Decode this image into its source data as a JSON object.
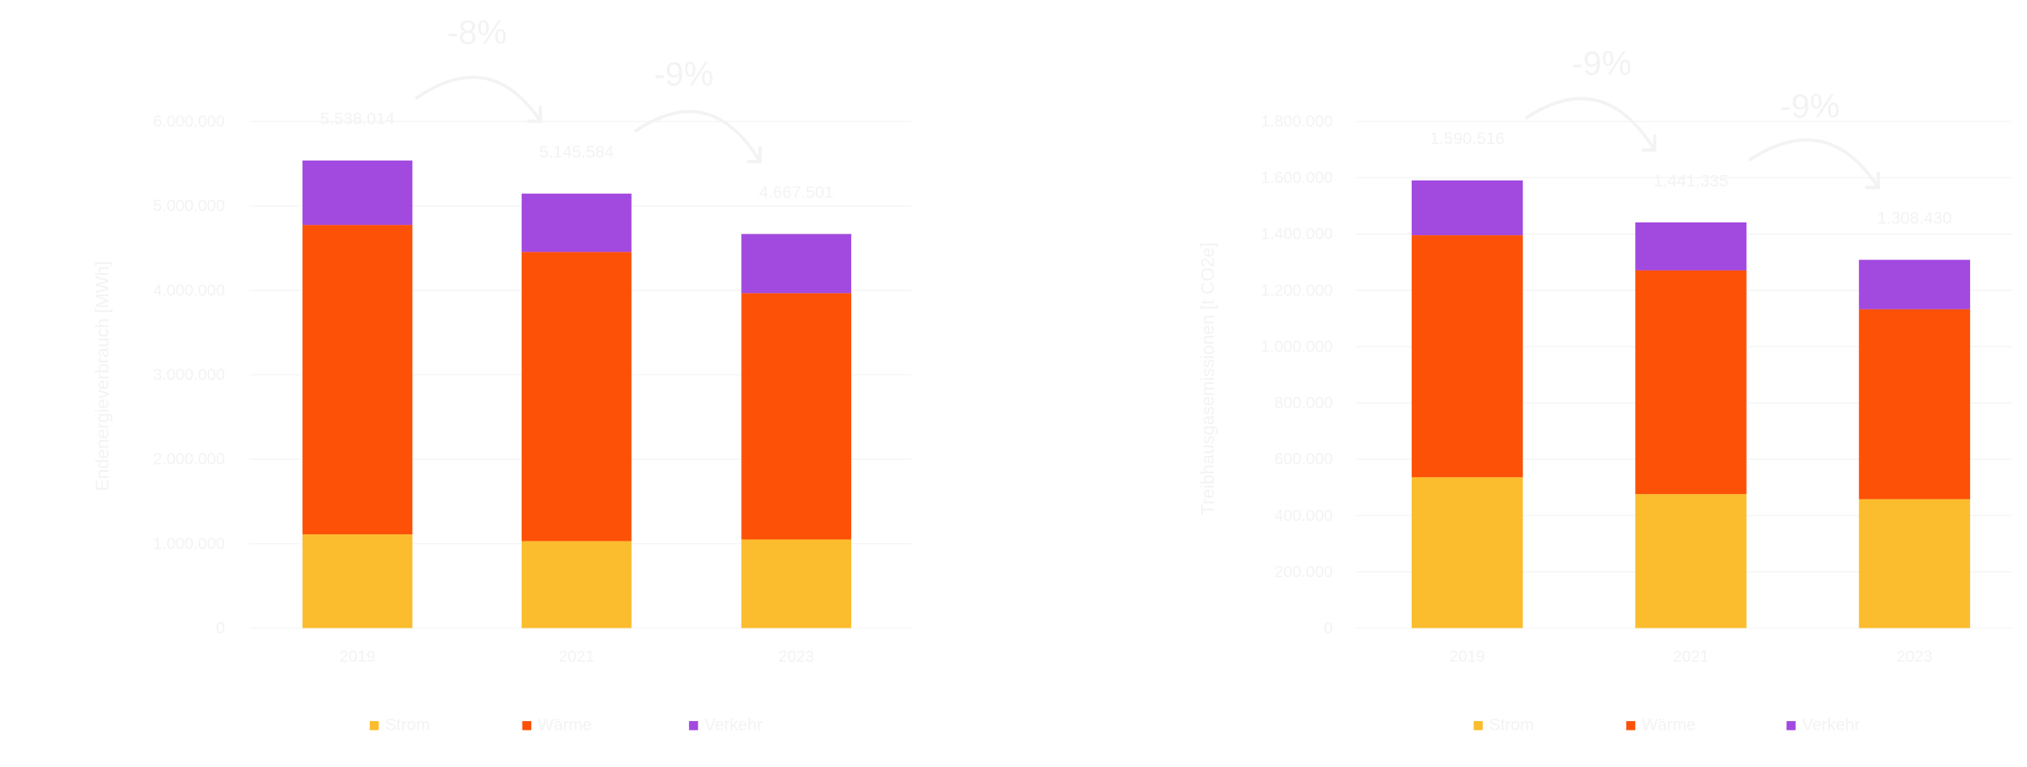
{
  "colors": {
    "Strom": "#fbbd2e",
    "Wärme": "#fd5108",
    "Verkehr": "#a249e0",
    "text": "#f3f3f3"
  },
  "chart_data": [
    {
      "type": "bar",
      "stacked": true,
      "title": "",
      "xlabel": "",
      "ylabel": "Endenergieverbrauch [MWh]",
      "ylim": [
        0,
        6000000
      ],
      "yticks": [
        "0",
        "1.000.000",
        "2.000.000",
        "3.000.000",
        "4.000.000",
        "5.000.000",
        "6.000.000"
      ],
      "ytick_values": [
        0,
        1000000,
        2000000,
        3000000,
        4000000,
        5000000,
        6000000
      ],
      "categories": [
        "2019",
        "2021",
        "2023"
      ],
      "series": [
        {
          "name": "Strom",
          "values": [
            1110000,
            1030000,
            1050000
          ]
        },
        {
          "name": "Wärme",
          "values": [
            3665000,
            3425000,
            2917000
          ]
        },
        {
          "name": "Verkehr",
          "values": [
            763014,
            690584,
            700501
          ]
        }
      ],
      "totals": [
        "5.538.014",
        "5.145.584",
        "4.667.501"
      ],
      "annotations": [
        {
          "text": "-8%",
          "from": "2019",
          "to": "2021"
        },
        {
          "text": "-9%",
          "from": "2021",
          "to": "2023"
        }
      ],
      "grid": true,
      "legend": "bottom"
    },
    {
      "type": "bar",
      "stacked": true,
      "title": "",
      "xlabel": "",
      "ylabel": "Treibhausgasemissionen [t CO2e]",
      "ylim": [
        0,
        1800000
      ],
      "yticks": [
        "0",
        "200.000",
        "400.000",
        "600.000",
        "800.000",
        "1.000.000",
        "1.200.000",
        "1.400.000",
        "1.600.000",
        "1.800.000"
      ],
      "ytick_values": [
        0,
        200000,
        400000,
        600000,
        800000,
        1000000,
        1200000,
        1400000,
        1600000,
        1800000
      ],
      "categories": [
        "2019",
        "2021",
        "2023"
      ],
      "series": [
        {
          "name": "Strom",
          "values": [
            536000,
            476000,
            458000
          ]
        },
        {
          "name": "Wärme",
          "values": [
            860000,
            795000,
            675000
          ]
        },
        {
          "name": "Verkehr",
          "values": [
            194516,
            170335,
            175430
          ]
        }
      ],
      "totals": [
        "1.590.516",
        "1.441.335",
        "1.308.430"
      ],
      "annotations": [
        {
          "text": "-9%",
          "from": "2019",
          "to": "2021"
        },
        {
          "text": "-9%",
          "from": "2021",
          "to": "2023"
        }
      ],
      "grid": true,
      "legend": "bottom"
    }
  ]
}
